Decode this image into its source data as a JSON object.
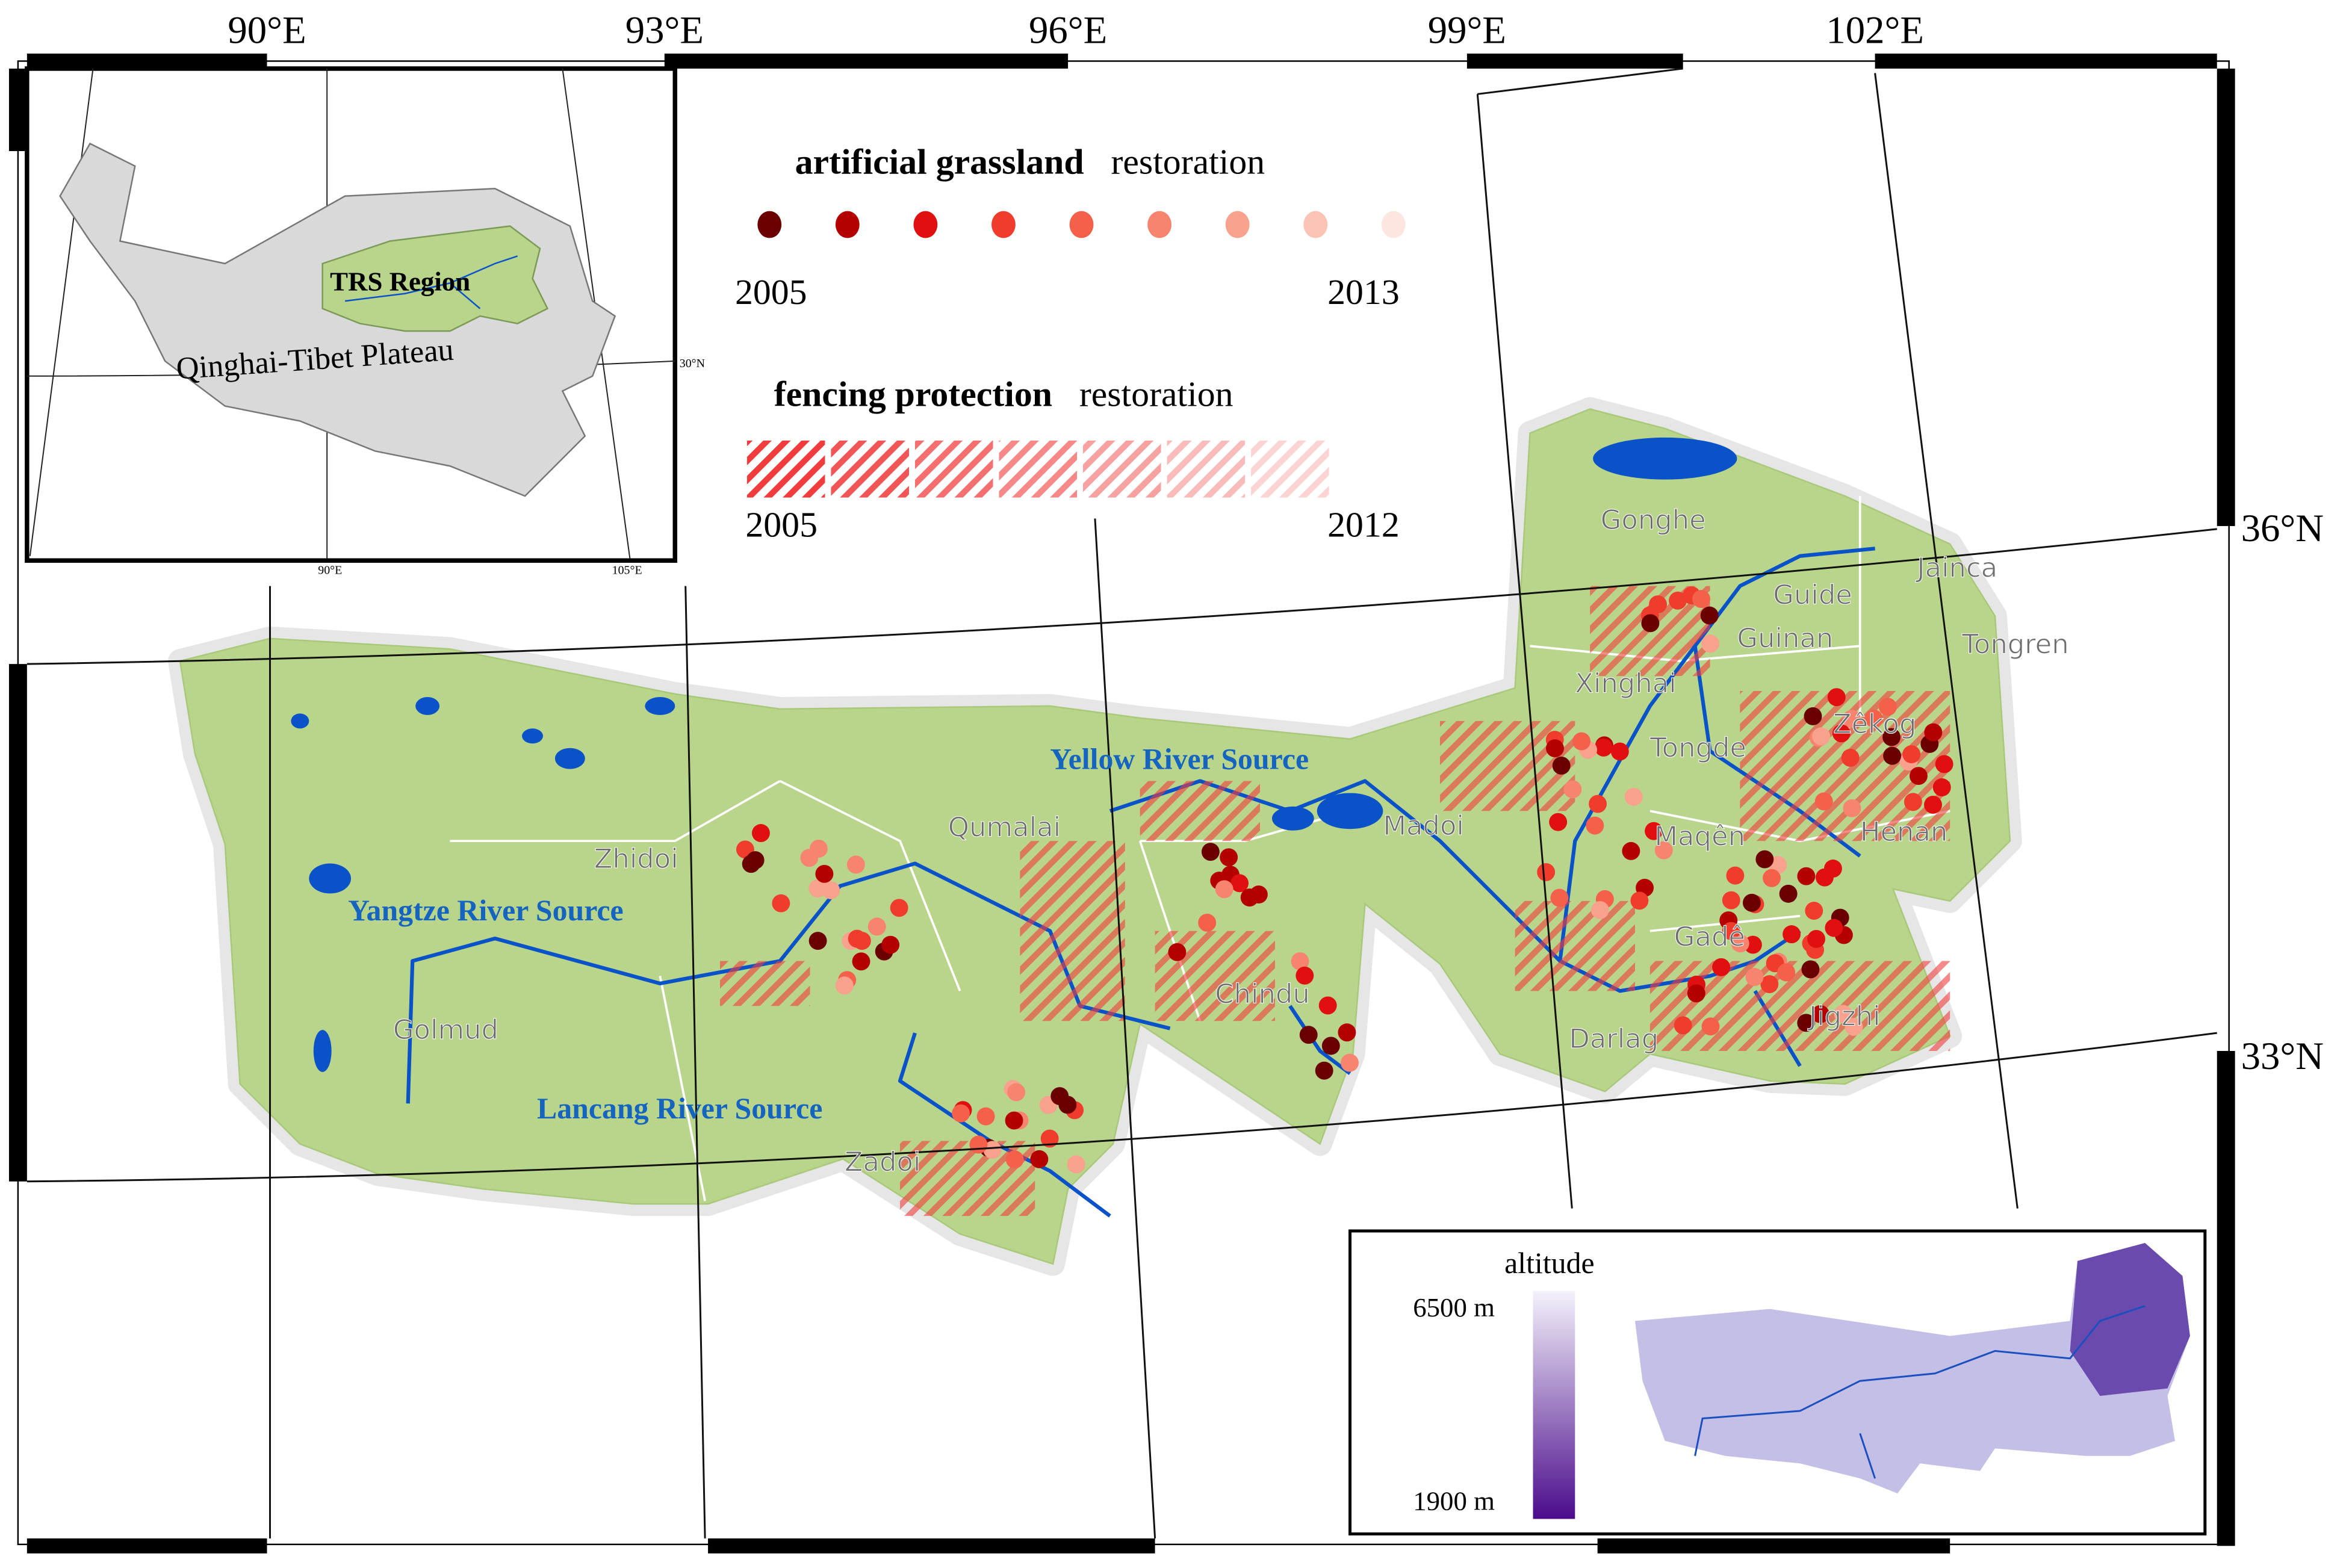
{
  "grid_labels": {
    "longitudes": [
      "90°E",
      "93°E",
      "96°E",
      "99°E",
      "102°E"
    ],
    "latitudes": [
      "36°N",
      "33°N"
    ]
  },
  "inset": {
    "region_label": "TRS Region",
    "plateau_label": "Qinghai-Tibet Plateau",
    "lat_label": "30°N",
    "lon_labels": [
      "90°E",
      "105°E"
    ]
  },
  "legend": {
    "artificial": {
      "bold": "artificial  grassland",
      "suffix": "restoration",
      "start": "2005",
      "end": "2013"
    },
    "fencing": {
      "bold": "fencing  protection",
      "suffix": "restoration",
      "start": "2005",
      "end": "2012"
    }
  },
  "rivers": [
    "Yellow River Source",
    "Yangtze River Source",
    "Lancang River Source"
  ],
  "places": [
    "Gonghe",
    "Guide",
    "Guinan",
    "Jainca",
    "Tongren",
    "Xinghai",
    "Tongde",
    "Zêkog",
    "Maqên",
    "Henan",
    "Madoi",
    "Qumalai",
    "Zhidoi",
    "Chindu",
    "Gadê",
    "Jigzhi",
    "Darlag",
    "Golmud",
    "Zadoi"
  ],
  "altitude_legend": {
    "title": "altitude",
    "max": "6500 m",
    "min": "1900 m"
  }
}
